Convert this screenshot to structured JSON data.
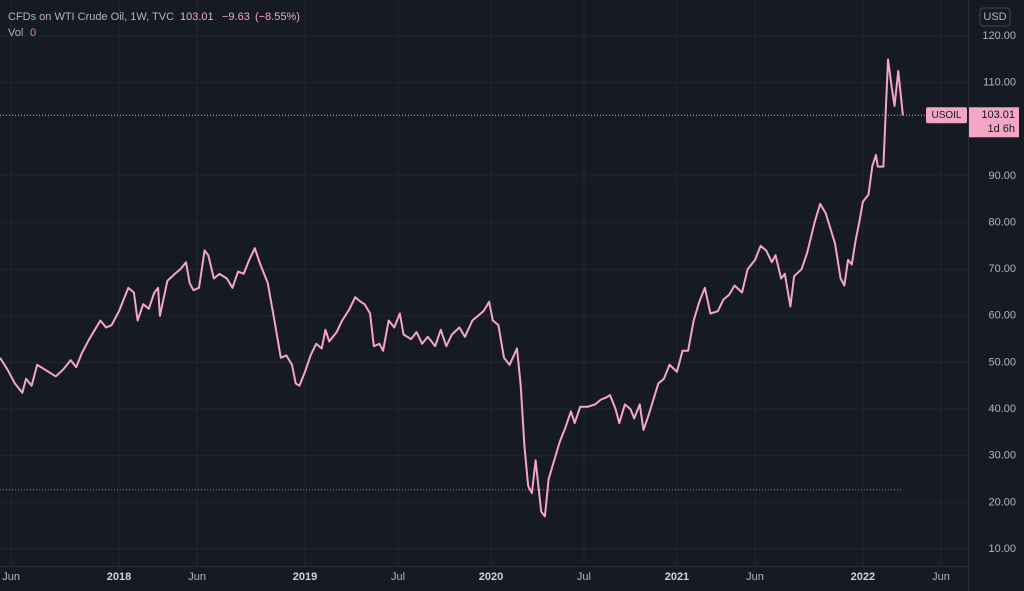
{
  "chart_data": {
    "type": "line",
    "header": {
      "title": "CFDs on WTI Crude Oil, 1W, TVC",
      "price": 103.01,
      "change": "−9.63",
      "change_pct": "(−8.55%)",
      "vol_label": "Vol",
      "vol_value": 0
    },
    "currency": "USD",
    "price_tag": {
      "symbol": "USOIL",
      "price": 103.01,
      "countdown": "1d 6h"
    },
    "price_line": 103.01,
    "low_line": 22.7,
    "grid": true,
    "color": "#f4a6c3",
    "xlim": [
      2017.36,
      2022.565
    ],
    "xticks": [
      {
        "value": 2017.42,
        "label": "Jun"
      },
      {
        "value": 2018,
        "label": "2018"
      },
      {
        "value": 2018.42,
        "label": "Jun"
      },
      {
        "value": 2019,
        "label": "2019"
      },
      {
        "value": 2019.5,
        "label": "Jul"
      },
      {
        "value": 2020,
        "label": "2020"
      },
      {
        "value": 2020.5,
        "label": "Jul"
      },
      {
        "value": 2021,
        "label": "2021"
      },
      {
        "value": 2021.42,
        "label": "Jun"
      },
      {
        "value": 2022,
        "label": "2022"
      },
      {
        "value": 2022.42,
        "label": "Jun"
      }
    ],
    "ylim": [
      6.35,
      127.73
    ],
    "yticks": [
      {
        "value": 10,
        "label": "10.00"
      },
      {
        "value": 20,
        "label": "20.00"
      },
      {
        "value": 30,
        "label": "30.00"
      },
      {
        "value": 40,
        "label": "40.00"
      },
      {
        "value": 50,
        "label": "50.00"
      },
      {
        "value": 60,
        "label": "60.00"
      },
      {
        "value": 70,
        "label": "70.00"
      },
      {
        "value": 80,
        "label": "80.00"
      },
      {
        "value": 90,
        "label": "90.00"
      },
      {
        "value": 110,
        "label": "110.00"
      },
      {
        "value": 120,
        "label": "120.00"
      }
    ],
    "x": [
      2017.36,
      2017.4,
      2017.44,
      2017.48,
      2017.5,
      2017.53,
      2017.56,
      2017.62,
      2017.66,
      2017.7,
      2017.74,
      2017.77,
      2017.8,
      2017.84,
      2017.87,
      2017.9,
      2017.93,
      2017.96,
      2018,
      2018.03,
      2018.05,
      2018.08,
      2018.1,
      2018.13,
      2018.16,
      2018.19,
      2018.21,
      2018.22,
      2018.26,
      2018.3,
      2018.33,
      2018.36,
      2018.38,
      2018.4,
      2018.43,
      2018.46,
      2018.48,
      2018.51,
      2018.54,
      2018.58,
      2018.61,
      2018.64,
      2018.67,
      2018.7,
      2018.73,
      2018.76,
      2018.8,
      2018.84,
      2018.87,
      2018.9,
      2018.93,
      2018.95,
      2018.97,
      2019,
      2019.03,
      2019.06,
      2019.09,
      2019.11,
      2019.13,
      2019.17,
      2019.2,
      2019.24,
      2019.27,
      2019.3,
      2019.32,
      2019.35,
      2019.37,
      2019.4,
      2019.42,
      2019.45,
      2019.48,
      2019.51,
      2019.53,
      2019.57,
      2019.6,
      2019.63,
      2019.66,
      2019.7,
      2019.73,
      2019.76,
      2019.79,
      2019.83,
      2019.86,
      2019.9,
      2019.93,
      2019.96,
      2019.99,
      2020.01,
      2020.04,
      2020.07,
      2020.1,
      2020.14,
      2020.16,
      2020.18,
      2020.2,
      2020.22,
      2020.24,
      2020.27,
      2020.29,
      2020.31,
      2020.34,
      2020.37,
      2020.4,
      2020.43,
      2020.45,
      2020.48,
      2020.52,
      2020.56,
      2020.59,
      2020.62,
      2020.64,
      2020.67,
      2020.69,
      2020.72,
      2020.75,
      2020.77,
      2020.8,
      2020.82,
      2020.85,
      2020.9,
      2020.93,
      2020.96,
      2021,
      2021.03,
      2021.06,
      2021.09,
      2021.12,
      2021.15,
      2021.18,
      2021.22,
      2021.25,
      2021.28,
      2021.31,
      2021.35,
      2021.38,
      2021.42,
      2021.45,
      2021.48,
      2021.51,
      2021.53,
      2021.56,
      2021.58,
      2021.61,
      2021.63,
      2021.67,
      2021.7,
      2021.74,
      2021.77,
      2021.8,
      2021.85,
      2021.88,
      2021.9,
      2021.92,
      2021.94,
      2021.96,
      2021.98,
      2022,
      2022.03,
      2022.05,
      2022.07,
      2022.08,
      2022.11,
      2022.125,
      2022.135,
      2022.155,
      2022.17,
      2022.19,
      2022.215
    ],
    "values": [
      51,
      48.5,
      45.5,
      43.5,
      46.5,
      45,
      49.5,
      48,
      47,
      48.5,
      50.5,
      49,
      52,
      55,
      57,
      59,
      57.5,
      58,
      61,
      64,
      66,
      65,
      59,
      62.5,
      61.5,
      65,
      66,
      60,
      67.5,
      69,
      70,
      71.5,
      67,
      65.5,
      66,
      74,
      73,
      68,
      69,
      68,
      66,
      69.5,
      69,
      72,
      74.5,
      71,
      67,
      58,
      51,
      51.5,
      49.5,
      45.5,
      45,
      48,
      51.5,
      54,
      53,
      57,
      54.5,
      56.5,
      59,
      61.5,
      64,
      63,
      62.5,
      60.5,
      53.5,
      54,
      52.5,
      59,
      57.5,
      60.5,
      56,
      55,
      56.5,
      54,
      55.5,
      53.5,
      57,
      53.5,
      56,
      57.5,
      55.5,
      59,
      60,
      61,
      63,
      59,
      58,
      51,
      49.5,
      53,
      45,
      32,
      23.5,
      22,
      29,
      18,
      17,
      25,
      29,
      33,
      36,
      39.5,
      37,
      40.5,
      40.5,
      41,
      42,
      42.5,
      43,
      40,
      37,
      41,
      40,
      38,
      41,
      35.5,
      39,
      45.5,
      46.5,
      49.5,
      48,
      52.5,
      52.5,
      59,
      63,
      66,
      60.5,
      61,
      63.5,
      64.5,
      66.5,
      65,
      70,
      72,
      75,
      74,
      71.5,
      73,
      68,
      69,
      62,
      68.5,
      70,
      73.5,
      80,
      84,
      82,
      75.5,
      68,
      66.5,
      72,
      71,
      76,
      80,
      84.5,
      86,
      92,
      94.5,
      92,
      92,
      106,
      115,
      109,
      105,
      112.5,
      103.01
    ]
  }
}
